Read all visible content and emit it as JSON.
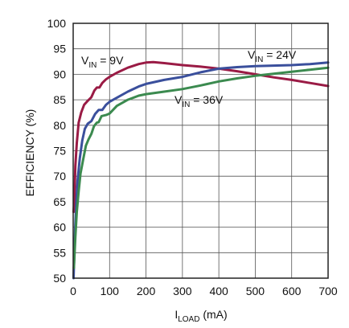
{
  "chart_data": {
    "type": "line",
    "xlabel": {
      "main": "I",
      "sub": "LOAD",
      "rest": " (mA)"
    },
    "ylabel": "EFFICIENCY (%)",
    "xlim": [
      0,
      700
    ],
    "ylim": [
      50,
      100
    ],
    "x_ticks": [
      0,
      100,
      200,
      300,
      400,
      500,
      600,
      700
    ],
    "y_ticks": [
      50,
      55,
      60,
      65,
      70,
      75,
      80,
      85,
      90,
      95,
      100
    ],
    "grid": true,
    "series": [
      {
        "label_main": "V",
        "label_sub": "IN",
        "label_rest": " = 9V",
        "color": "#9a1b45",
        "points": [
          [
            1,
            63
          ],
          [
            3,
            65
          ],
          [
            6,
            72
          ],
          [
            10,
            76.5
          ],
          [
            15,
            80.5
          ],
          [
            22,
            82.5
          ],
          [
            30,
            84
          ],
          [
            40,
            84.8
          ],
          [
            50,
            85.5
          ],
          [
            58,
            86.8
          ],
          [
            65,
            87.4
          ],
          [
            72,
            87.4
          ],
          [
            80,
            88.3
          ],
          [
            90,
            89
          ],
          [
            100,
            89.5
          ],
          [
            120,
            90.3
          ],
          [
            150,
            91.3
          ],
          [
            180,
            92
          ],
          [
            200,
            92.3
          ],
          [
            220,
            92.4
          ],
          [
            250,
            92.2
          ],
          [
            300,
            91.8
          ],
          [
            350,
            91.5
          ],
          [
            400,
            91.1
          ],
          [
            450,
            90.6
          ],
          [
            500,
            90
          ],
          [
            550,
            89.4
          ],
          [
            600,
            88.9
          ],
          [
            650,
            88.3
          ],
          [
            700,
            87.7
          ]
        ]
      },
      {
        "label_main": "V",
        "label_sub": "IN",
        "label_rest": " = 24V",
        "color": "#3a4f9c",
        "points": [
          [
            1,
            50
          ],
          [
            4,
            57
          ],
          [
            8,
            64
          ],
          [
            12,
            69
          ],
          [
            18,
            73.5
          ],
          [
            25,
            77
          ],
          [
            32,
            79.3
          ],
          [
            40,
            80.3
          ],
          [
            50,
            80.8
          ],
          [
            60,
            82.2
          ],
          [
            70,
            83
          ],
          [
            80,
            83
          ],
          [
            90,
            84
          ],
          [
            100,
            84.6
          ],
          [
            120,
            85.4
          ],
          [
            150,
            86.6
          ],
          [
            180,
            87.6
          ],
          [
            200,
            88.1
          ],
          [
            250,
            88.9
          ],
          [
            300,
            89.5
          ],
          [
            350,
            90.4
          ],
          [
            400,
            91.1
          ],
          [
            450,
            91.4
          ],
          [
            500,
            91.6
          ],
          [
            550,
            91.7
          ],
          [
            600,
            91.8
          ],
          [
            650,
            92
          ],
          [
            700,
            92.3
          ]
        ]
      },
      {
        "label_main": "V",
        "label_sub": "IN",
        "label_rest": " = 36V",
        "color": "#3b8a4f",
        "points": [
          [
            2,
            52
          ],
          [
            6,
            58
          ],
          [
            10,
            63
          ],
          [
            15,
            67
          ],
          [
            20,
            70.5
          ],
          [
            28,
            73.5
          ],
          [
            35,
            76
          ],
          [
            42,
            77.2
          ],
          [
            50,
            78.3
          ],
          [
            57,
            79.8
          ],
          [
            65,
            80.5
          ],
          [
            70,
            80.6
          ],
          [
            78,
            81.8
          ],
          [
            90,
            82
          ],
          [
            100,
            82.3
          ],
          [
            120,
            83.8
          ],
          [
            150,
            85
          ],
          [
            180,
            85.8
          ],
          [
            200,
            86.1
          ],
          [
            250,
            86.6
          ],
          [
            300,
            87.1
          ],
          [
            350,
            87.8
          ],
          [
            400,
            88.6
          ],
          [
            450,
            89.2
          ],
          [
            500,
            89.7
          ],
          [
            550,
            90.1
          ],
          [
            600,
            90.5
          ],
          [
            650,
            90.9
          ],
          [
            700,
            91.3
          ]
        ]
      }
    ]
  }
}
